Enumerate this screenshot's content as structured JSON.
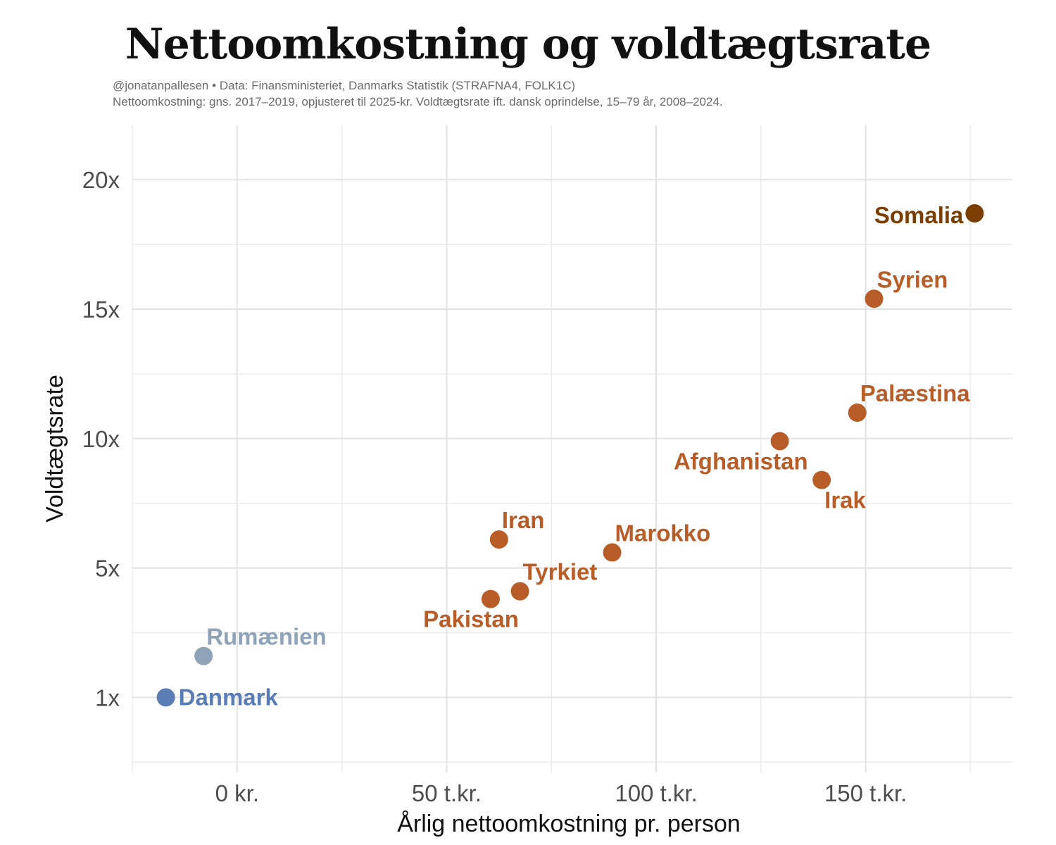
{
  "chart_data": {
    "type": "scatter",
    "title": "Nettoomkostning og voldtægtsrate",
    "subtitle_lines": [
      "@jonatanpallesen • Data: Finansministeriet, Danmarks Statistik (STRAFNA4, FOLK1C)",
      "Nettoomkostning: gns. 2017–2019, opjusteret til 2025-kr. Voldtægtsrate ift. dansk oprindelse, 15–79 år, 2008–2024."
    ],
    "xlabel": "Årlig nettoomkostning pr. person",
    "ylabel": "Voldtægtsrate",
    "xlim": [
      -50,
      370
    ],
    "ylim": [
      -2.9,
      22.1
    ],
    "grid": true,
    "x_ticks": [
      {
        "value": 0,
        "label": "0 kr."
      },
      {
        "value": 100,
        "label": "50 t.kr."
      },
      {
        "value": 200,
        "label": "100 t.kr."
      },
      {
        "value": 300,
        "label": "150 t.kr."
      }
    ],
    "y_ticks": [
      {
        "value": 0,
        "label": "1x"
      },
      {
        "value": 5,
        "label": "5x"
      },
      {
        "value": 10,
        "label": "10x"
      },
      {
        "value": 15,
        "label": "15x"
      },
      {
        "value": 20,
        "label": "20x"
      }
    ],
    "points": [
      {
        "label": "Danmark",
        "x": -34,
        "y": 0.0,
        "color": "#5b7db5",
        "label_pos": "right"
      },
      {
        "label": "Rumænien",
        "x": -16,
        "y": 1.6,
        "color": "#8fa3b8",
        "label_pos": "above-right"
      },
      {
        "label": "Pakistan",
        "x": 121,
        "y": 3.8,
        "color": "#b85c28",
        "label_pos": "below-left"
      },
      {
        "label": "Tyrkiet",
        "x": 135,
        "y": 4.1,
        "color": "#b85c28",
        "label_pos": "above-right"
      },
      {
        "label": "Iran",
        "x": 125,
        "y": 6.1,
        "color": "#b85c28",
        "label_pos": "above-right"
      },
      {
        "label": "Marokko",
        "x": 179,
        "y": 5.6,
        "color": "#b85c28",
        "label_pos": "above-right"
      },
      {
        "label": "Afghanistan",
        "x": 259,
        "y": 9.9,
        "color": "#b85c28",
        "label_pos": "below-left"
      },
      {
        "label": "Irak",
        "x": 279,
        "y": 8.4,
        "color": "#b85c28",
        "label_pos": "below-right"
      },
      {
        "label": "Palæstina",
        "x": 296,
        "y": 11.0,
        "color": "#b85c28",
        "label_pos": "above-right"
      },
      {
        "label": "Syrien",
        "x": 304,
        "y": 15.4,
        "color": "#b85c28",
        "label_pos": "above-right"
      },
      {
        "label": "Somalia",
        "x": 352,
        "y": 18.7,
        "color": "#7a3e00",
        "label_pos": "left"
      }
    ]
  }
}
